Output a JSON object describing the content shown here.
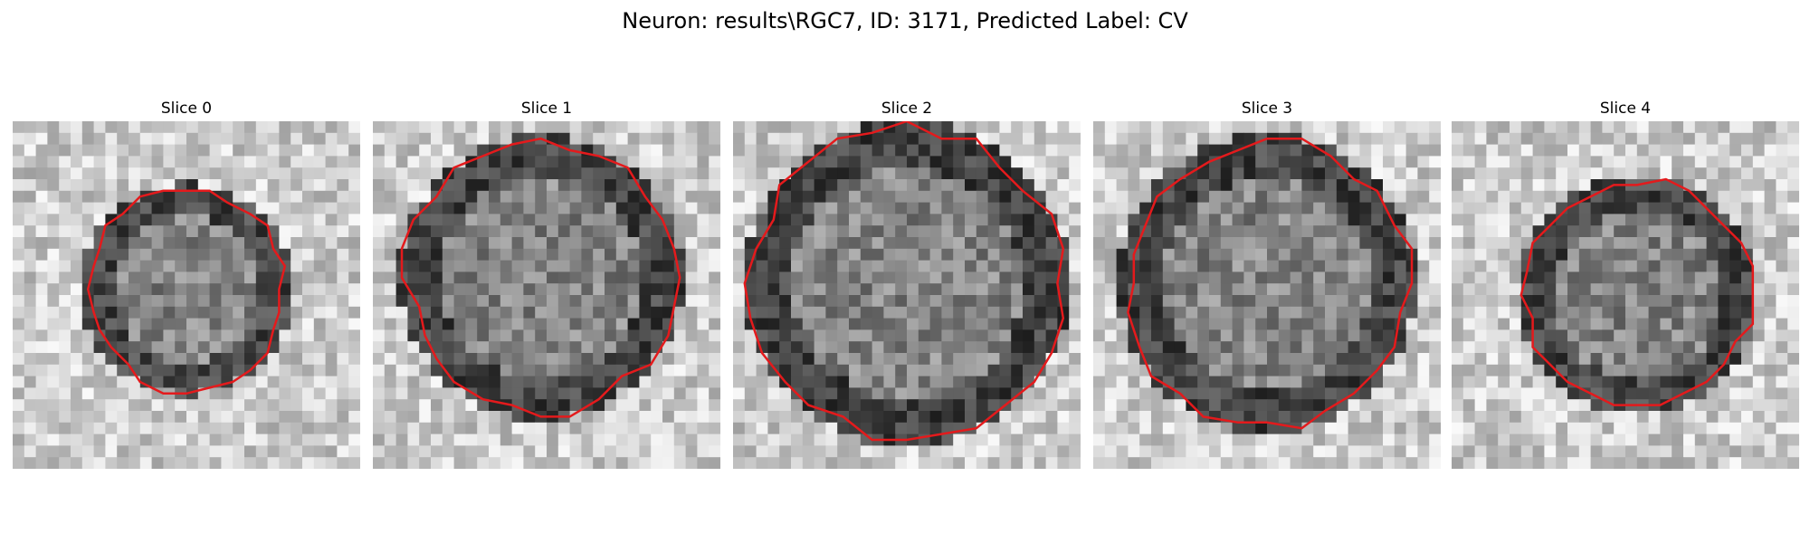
{
  "figure": {
    "title": "Neuron: results\\RGC7, ID: 3171, Predicted Label: CV"
  },
  "panels": [
    {
      "title": "Slice 0"
    },
    {
      "title": "Slice 1"
    },
    {
      "title": "Slice 2"
    },
    {
      "title": "Slice 3"
    },
    {
      "title": "Slice 4"
    }
  ],
  "colors": {
    "contour": "#e41a1c",
    "background": "#ffffff"
  }
}
